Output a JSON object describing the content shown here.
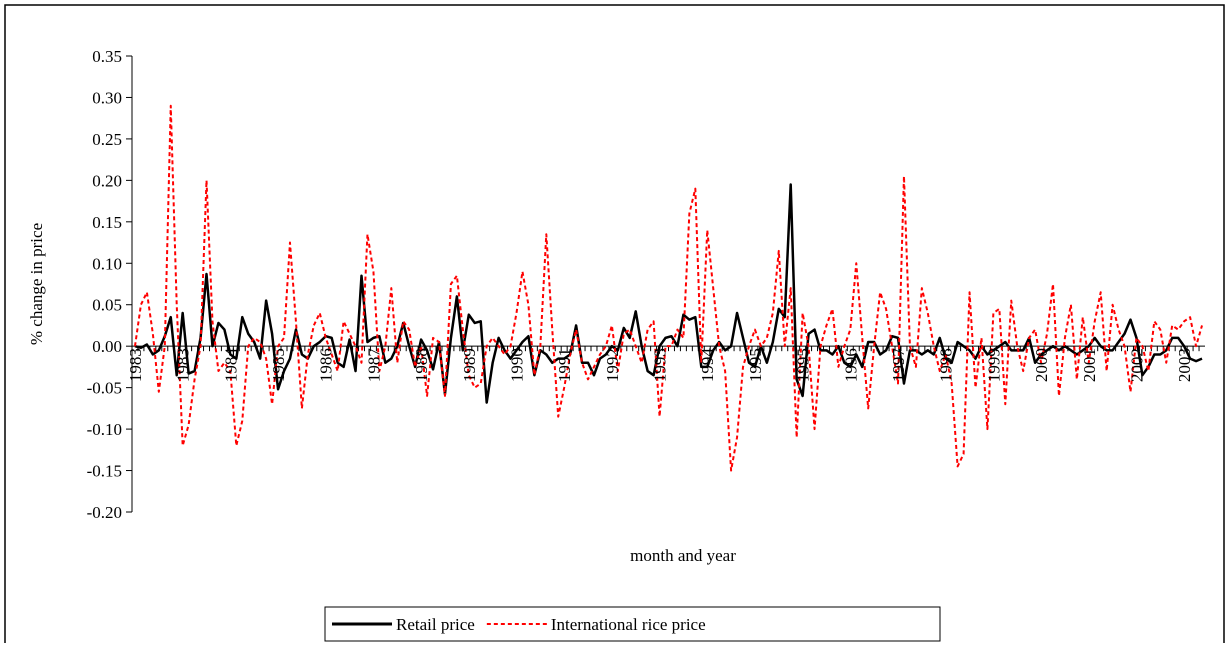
{
  "chart_data": {
    "type": "line",
    "x_label": "month and year",
    "y_label": "% change in price",
    "ylim": [
      -0.2,
      0.35
    ],
    "yticks": [
      {
        "value": -0.2,
        "label": "-0.20"
      },
      {
        "value": -0.15,
        "label": "-0.15"
      },
      {
        "value": -0.1,
        "label": "-0.10"
      },
      {
        "value": -0.05,
        "label": "-0.05"
      },
      {
        "value": 0,
        "label": "0.00"
      },
      {
        "value": 0.05,
        "label": "0.05"
      },
      {
        "value": 0.1,
        "label": "0.10"
      },
      {
        "value": 0.15,
        "label": "0.15"
      },
      {
        "value": 0.2,
        "label": "0.20"
      },
      {
        "value": 0.25,
        "label": "0.25"
      },
      {
        "value": 0.3,
        "label": "0.30"
      },
      {
        "value": 0.35,
        "label": "0.35"
      }
    ],
    "categories": [
      "1983",
      null,
      null,
      null,
      null,
      null,
      null,
      null,
      "1983",
      null,
      null,
      null,
      null,
      null,
      null,
      null,
      "1984",
      null,
      null,
      null,
      null,
      null,
      null,
      null,
      "1985",
      null,
      null,
      null,
      null,
      null,
      null,
      null,
      "1986",
      null,
      null,
      null,
      null,
      null,
      null,
      null,
      "1987",
      null,
      null,
      null,
      null,
      null,
      null,
      null,
      "1988",
      null,
      null,
      null,
      null,
      null,
      null,
      null,
      "1989",
      null,
      null,
      null,
      null,
      null,
      null,
      null,
      "1990",
      null,
      null,
      null,
      null,
      null,
      null,
      null,
      "1991",
      null,
      null,
      null,
      null,
      null,
      null,
      null,
      "1992",
      null,
      null,
      null,
      null,
      null,
      null,
      null,
      "1993",
      null,
      null,
      null,
      null,
      null,
      null,
      null,
      "1994",
      null,
      null,
      null,
      null,
      null,
      null,
      null,
      "1995",
      null,
      null,
      null,
      null,
      null,
      null,
      null,
      "1995",
      null,
      null,
      null,
      null,
      null,
      null,
      null,
      "1996",
      null,
      null,
      null,
      null,
      null,
      null,
      null,
      "1997",
      null,
      null,
      null,
      null,
      null,
      null,
      null,
      "1998",
      null,
      null,
      null,
      null,
      null,
      null,
      null,
      "1999",
      null,
      null,
      null,
      null,
      null,
      null,
      null,
      "2000",
      null,
      null,
      null,
      null,
      null,
      null,
      null,
      "2001",
      null,
      null,
      null,
      null,
      null,
      null,
      null,
      "2002",
      null,
      null,
      null,
      null,
      null,
      null,
      null,
      "2003",
      null,
      null,
      null
    ],
    "series": [
      {
        "name": "Retail price",
        "color": "#000000",
        "dash": false,
        "values": [
          0,
          -0.002,
          0.002,
          -0.01,
          -0.005,
          0.012,
          0.035,
          -0.035,
          0.04,
          -0.033,
          -0.03,
          0.01,
          0.087,
          0.0,
          0.028,
          0.02,
          -0.01,
          -0.015,
          0.035,
          0.015,
          0.005,
          -0.015,
          0.055,
          0.015,
          -0.052,
          -0.03,
          -0.015,
          0.02,
          -0.01,
          -0.015,
          0.0,
          0.005,
          0.012,
          0.01,
          -0.02,
          -0.025,
          0.008,
          -0.03,
          0.085,
          0.005,
          0.01,
          0.012,
          -0.02,
          -0.015,
          0.0,
          0.028,
          0.0,
          -0.025,
          0.008,
          -0.005,
          -0.028,
          0.005,
          -0.058,
          0.01,
          0.06,
          -0.005,
          0.038,
          0.028,
          0.03,
          -0.068,
          -0.02,
          0.01,
          -0.005,
          -0.015,
          -0.005,
          0.005,
          0.012,
          -0.035,
          -0.005,
          -0.01,
          -0.02,
          -0.015,
          -0.015,
          -0.01,
          0.025,
          -0.02,
          -0.02,
          -0.035,
          -0.015,
          -0.01,
          0.0,
          -0.005,
          0.022,
          0.01,
          0.042,
          0.0,
          -0.03,
          -0.035,
          0.0,
          0.01,
          0.012,
          0.0,
          0.038,
          0.032,
          0.035,
          -0.025,
          -0.025,
          -0.005,
          0.005,
          -0.005,
          0.0,
          0.04,
          0.01,
          -0.02,
          -0.025,
          0.0,
          -0.02,
          0.005,
          0.045,
          0.035,
          0.195,
          -0.04,
          -0.06,
          0.015,
          0.02,
          -0.005,
          -0.005,
          -0.01,
          0.0,
          -0.02,
          -0.025,
          -0.01,
          -0.025,
          0.005,
          0.005,
          -0.01,
          -0.005,
          0.012,
          0.01,
          -0.045,
          -0.005,
          -0.005,
          -0.01,
          -0.005,
          -0.01,
          0.01,
          -0.015,
          -0.02,
          0.005,
          0.0,
          -0.005,
          -0.015,
          0.0,
          -0.01,
          -0.005,
          0.0,
          0.005,
          -0.005,
          -0.005,
          -0.005,
          0.01,
          -0.02,
          -0.01,
          -0.005,
          0.0,
          -0.005,
          0.0,
          -0.005,
          -0.01,
          -0.005,
          0.0,
          0.01,
          0.0,
          -0.005,
          -0.005,
          0.005,
          0.015,
          0.032,
          0.01,
          -0.035,
          -0.025,
          -0.01,
          -0.01,
          -0.005,
          0.01,
          0.01,
          0.0,
          -0.015,
          -0.018,
          -0.015
        ]
      },
      {
        "name": "International rice price",
        "color": "#ff0000",
        "dash": true,
        "values": [
          0.0,
          0.05,
          0.065,
          0.015,
          -0.055,
          0.0,
          0.29,
          0.05,
          -0.12,
          -0.095,
          -0.04,
          0.0,
          0.2,
          0.03,
          -0.03,
          -0.02,
          -0.03,
          -0.12,
          -0.09,
          0.0,
          0.01,
          0.005,
          -0.015,
          -0.07,
          0.0,
          0.01,
          0.125,
          0.03,
          -0.075,
          -0.01,
          0.025,
          0.04,
          0.01,
          -0.01,
          -0.03,
          0.03,
          0.015,
          0.0,
          -0.02,
          0.135,
          0.09,
          -0.03,
          0.0,
          0.07,
          -0.02,
          0.03,
          0.02,
          -0.025,
          0.0,
          -0.06,
          0.01,
          0.005,
          -0.06,
          0.075,
          0.085,
          0.02,
          -0.035,
          -0.05,
          -0.045,
          0.0,
          0.01,
          0.0,
          -0.01,
          0.0,
          0.04,
          0.09,
          0.05,
          -0.035,
          0.0,
          0.135,
          0.02,
          -0.085,
          -0.05,
          -0.01,
          0.02,
          -0.02,
          -0.04,
          -0.025,
          -0.01,
          0.0,
          0.025,
          -0.03,
          0.015,
          0.02,
          0.0,
          -0.02,
          0.02,
          0.03,
          -0.085,
          0.0,
          0.0,
          0.02,
          0.01,
          0.16,
          0.19,
          -0.02,
          0.14,
          0.07,
          0.0,
          -0.03,
          -0.15,
          -0.11,
          -0.025,
          0.0,
          0.02,
          0.0,
          0.01,
          0.04,
          0.115,
          0.0,
          0.07,
          -0.11,
          0.04,
          0.0,
          -0.1,
          0.0,
          0.025,
          0.045,
          -0.025,
          0.0,
          0.02,
          0.1,
          0.01,
          -0.075,
          0.0,
          0.065,
          0.045,
          0.0,
          -0.045,
          0.205,
          0.0,
          -0.025,
          0.07,
          0.04,
          0.0,
          -0.03,
          -0.01,
          -0.045,
          -0.145,
          -0.13,
          0.065,
          -0.05,
          0.01,
          -0.1,
          0.04,
          0.045,
          -0.07,
          0.055,
          0.0,
          -0.03,
          0.01,
          0.02,
          -0.02,
          0.015,
          0.075,
          -0.06,
          0.01,
          0.05,
          -0.04,
          0.035,
          -0.02,
          0.03,
          0.065,
          -0.03,
          0.05,
          0.02,
          0.0,
          -0.055,
          0.01,
          0.0,
          -0.03,
          0.03,
          0.02,
          -0.02,
          0.025,
          0.02,
          0.03,
          0.035,
          0.0,
          0.025
        ]
      }
    ]
  }
}
